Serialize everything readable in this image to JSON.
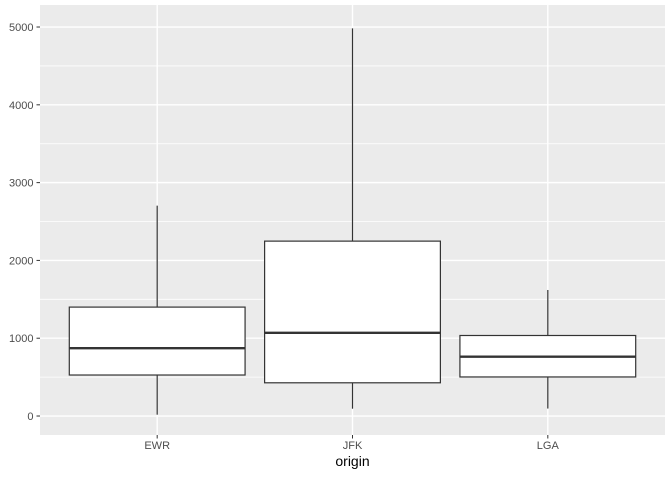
{
  "chart_data": {
    "type": "boxplot",
    "title": "",
    "xlabel": "origin",
    "ylabel": "",
    "categories": [
      "EWR",
      "JFK",
      "LGA"
    ],
    "series": [
      {
        "name": "EWR",
        "min": 17,
        "q1": 527,
        "median": 872,
        "q3": 1400,
        "max": 2704,
        "outliers": []
      },
      {
        "name": "JFK",
        "min": 94,
        "q1": 427,
        "median": 1069,
        "q3": 2248,
        "max": 4983,
        "outliers": []
      },
      {
        "name": "LGA",
        "min": 96,
        "q1": 502,
        "median": 762,
        "q3": 1035,
        "max": 1620,
        "outliers": []
      }
    ],
    "yticks": [
      0,
      1000,
      2000,
      3000,
      4000,
      5000
    ],
    "yticks_minor": [
      500,
      1500,
      2500,
      3500,
      4500
    ],
    "ylim": [
      -244,
      5283
    ],
    "grid": true,
    "legend": "none",
    "theme": {
      "background": "#FFFFFF",
      "panel_bg": "#EBEBEB",
      "grid_major_color": "#FFFFFF",
      "grid_minor_color": "#FFFFFF",
      "box_stroke": "#333333",
      "box_fill": "#FFFFFF",
      "median_stroke": "#333333",
      "tick_color": "#333333",
      "axis_text_color": "#4D4D4D",
      "axis_title_color": "#000000"
    }
  }
}
